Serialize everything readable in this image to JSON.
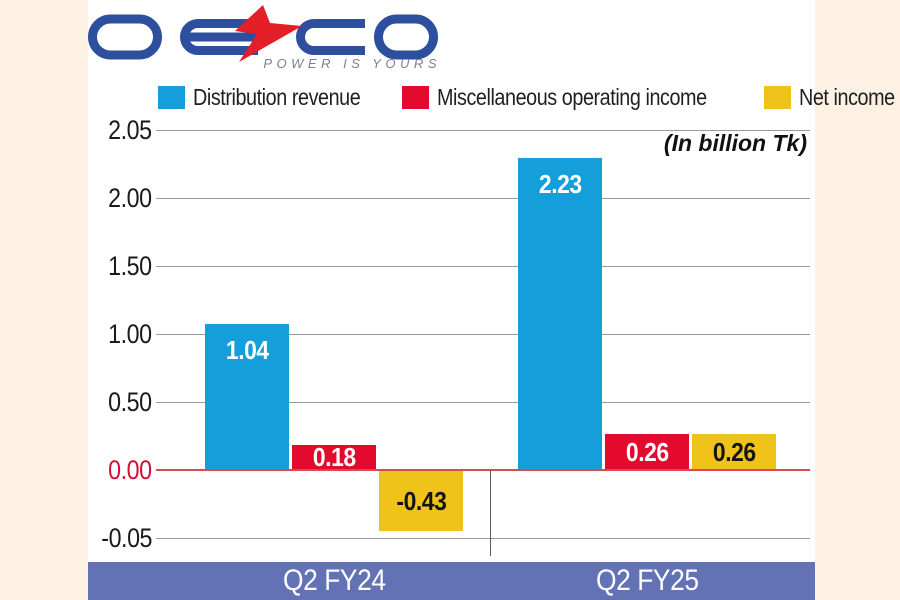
{
  "brand": {
    "name": "DESCO",
    "tagline": "POWER IS YOURS",
    "logo_blue": "#2d4f9e",
    "bolt_red": "#e41e26",
    "tagline_color": "#7b828e"
  },
  "page": {
    "background": "#fcf1e2",
    "panel_background": "#ffffff"
  },
  "chart_data": {
    "type": "bar",
    "title": "",
    "unit_note": "(In billion Tk)",
    "categories": [
      "Q2 FY24",
      "Q2 FY25"
    ],
    "series": [
      {
        "name": "Distribution revenue",
        "color": "#149fdb",
        "value_label_color": "#ffffff",
        "values": [
          1.04,
          2.23
        ]
      },
      {
        "name": "Miscellaneous operating income",
        "color": "#e40a2d",
        "value_label_color": "#ffffff",
        "values": [
          0.18,
          0.26
        ]
      },
      {
        "name": "Net income",
        "color": "#efc319",
        "value_label_color": "#141414",
        "values": [
          -0.43,
          0.26
        ]
      }
    ],
    "y_ticks": [
      {
        "label": "2.05",
        "color": "#1a1a1a"
      },
      {
        "label": "2.00",
        "color": "#1a1a1a"
      },
      {
        "label": "1.50",
        "color": "#1a1a1a"
      },
      {
        "label": "1.00",
        "color": "#1a1a1a"
      },
      {
        "label": "0.50",
        "color": "#1a1a1a"
      },
      {
        "label": "0.00",
        "color": "#d40f34"
      },
      {
        "label": "-0.05",
        "color": "#1a1a1a"
      }
    ],
    "ylim": [
      -0.5,
      2.3
    ],
    "grid": true,
    "legend_position": "top",
    "gridline_color": "#9a9a9a",
    "zero_line_color": "#d84a50",
    "category_band_color": "#6272b4",
    "category_label_color": "#ffffff"
  }
}
